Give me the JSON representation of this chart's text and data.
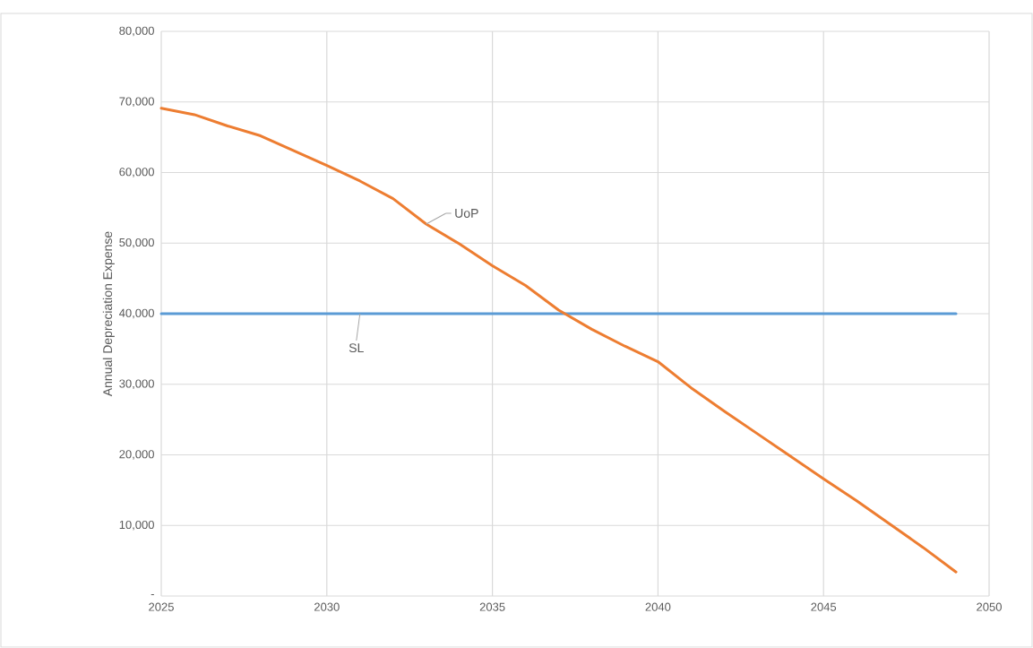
{
  "chart_data": {
    "type": "line",
    "ylabel": "Annual Depreciation Expense",
    "x": [
      2025,
      2026,
      2027,
      2028,
      2029,
      2030,
      2031,
      2032,
      2033,
      2034,
      2035,
      2036,
      2037,
      2038,
      2039,
      2040,
      2041,
      2042,
      2043,
      2044,
      2045,
      2046,
      2047,
      2048,
      2049
    ],
    "series": [
      {
        "name": "SL",
        "color": "#5b9bd5",
        "values": [
          40000,
          40000,
          40000,
          40000,
          40000,
          40000,
          40000,
          40000,
          40000,
          40000,
          40000,
          40000,
          40000,
          40000,
          40000,
          40000,
          40000,
          40000,
          40000,
          40000,
          40000,
          40000,
          40000,
          40000,
          40000
        ]
      },
      {
        "name": "UoP",
        "color": "#ed7d31",
        "values": [
          69100,
          68200,
          66600,
          65200,
          63100,
          61000,
          58800,
          56300,
          52700,
          49900,
          46800,
          44000,
          40500,
          37800,
          35400,
          33200,
          29500,
          26200,
          23000,
          19800,
          16600,
          13500,
          10200,
          6900,
          3400
        ]
      }
    ],
    "xlim": [
      2025,
      2050
    ],
    "ylim": [
      0,
      80000
    ],
    "xticks": [
      2025,
      2030,
      2035,
      2040,
      2045,
      2050
    ],
    "yticks": [
      {
        "value": 0,
        "label": "-"
      },
      {
        "value": 10000,
        "label": "10,000"
      },
      {
        "value": 20000,
        "label": "20,000"
      },
      {
        "value": 30000,
        "label": "30,000"
      },
      {
        "value": 40000,
        "label": "40,000"
      },
      {
        "value": 50000,
        "label": "50,000"
      },
      {
        "value": 60000,
        "label": "60,000"
      },
      {
        "value": 70000,
        "label": "70,000"
      },
      {
        "value": 80000,
        "label": "80,000"
      }
    ],
    "grid": true,
    "legend": false,
    "marker": "none",
    "line_style": "solid"
  }
}
